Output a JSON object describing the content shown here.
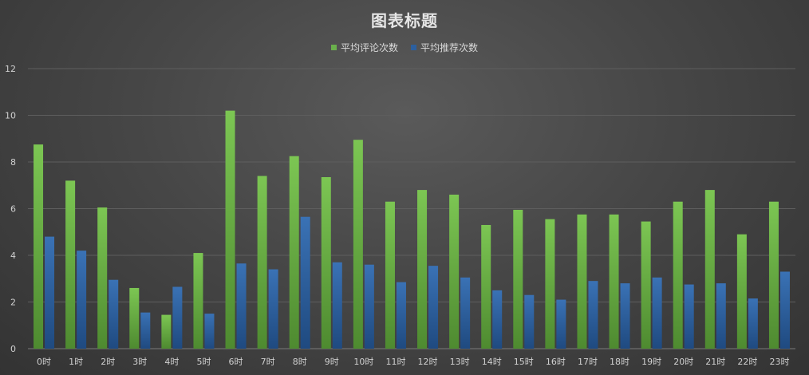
{
  "colors": {
    "series_green": "#6ab04c",
    "series_blue": "#2c5f9e",
    "gridline": "#5e5e5e",
    "axis": "#7a7a7a"
  },
  "chart_data": {
    "type": "bar",
    "title": "图表标题",
    "legend_position": "top",
    "grid": true,
    "ylim": [
      0,
      12
    ],
    "yticks": [
      0,
      2,
      4,
      6,
      8,
      10,
      12
    ],
    "categories": [
      "0时",
      "1时",
      "2时",
      "3时",
      "4时",
      "5时",
      "6时",
      "7时",
      "8时",
      "9时",
      "10时",
      "11时",
      "12时",
      "13时",
      "14时",
      "15时",
      "16时",
      "17时",
      "18时",
      "19时",
      "20时",
      "21时",
      "22时",
      "23时"
    ],
    "series": [
      {
        "name": "平均评论次数",
        "color": "#6ab04c",
        "values": [
          8.75,
          7.2,
          6.05,
          2.6,
          1.45,
          4.1,
          10.2,
          7.4,
          8.25,
          7.35,
          8.95,
          6.3,
          6.8,
          6.6,
          5.3,
          5.95,
          5.55,
          5.75,
          5.75,
          5.45,
          6.3,
          6.8,
          4.9,
          6.3
        ]
      },
      {
        "name": "平均推荐次数",
        "color": "#2c5f9e",
        "values": [
          4.8,
          4.2,
          2.95,
          1.55,
          2.65,
          1.5,
          3.65,
          3.4,
          5.65,
          3.7,
          3.6,
          2.85,
          3.55,
          3.05,
          2.5,
          2.3,
          2.1,
          2.9,
          2.8,
          3.05,
          2.75,
          2.8,
          2.15,
          3.3
        ]
      }
    ]
  }
}
